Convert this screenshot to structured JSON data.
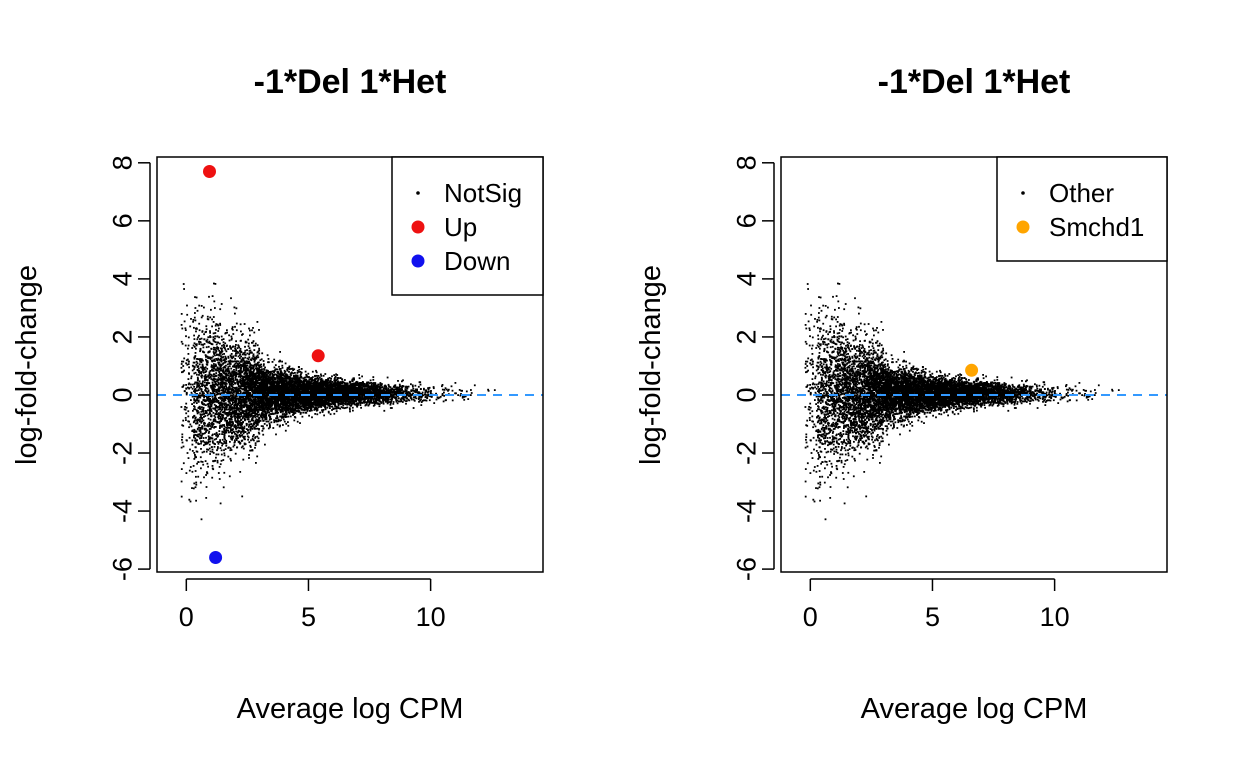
{
  "chart_data": [
    {
      "type": "scatter",
      "title": "-1*Del 1*Het",
      "xlabel": "Average log CPM",
      "ylabel": "log-fold-change",
      "xlim": [
        -1.2,
        14.6
      ],
      "ylim": [
        -6.1,
        8.2
      ],
      "xticks": [
        0,
        5,
        10
      ],
      "yticks": [
        -6,
        -4,
        -2,
        0,
        2,
        4,
        6,
        8
      ],
      "hline": {
        "y": 0,
        "color": "#3399ff",
        "style": "dashed"
      },
      "legend": {
        "position": "top-right",
        "entries": [
          {
            "label": "NotSig",
            "color": "#000000",
            "marker": "small-dot"
          },
          {
            "label": "Up",
            "color": "#ee1111",
            "marker": "dot"
          },
          {
            "label": "Down",
            "color": "#1111ee",
            "marker": "dot"
          }
        ]
      },
      "series": [
        {
          "name": "NotSig",
          "color": "#000000",
          "points": "dense cloud (~15000 genes) funneling from wide spread at low logCPM to narrow near logCPM 12-13"
        },
        {
          "name": "Up",
          "color": "#ee1111",
          "x": [
            0.95,
            5.4
          ],
          "y": [
            7.7,
            1.35
          ]
        },
        {
          "name": "Down",
          "color": "#1111ee",
          "x": [
            1.2
          ],
          "y": [
            -5.6
          ]
        }
      ]
    },
    {
      "type": "scatter",
      "title": "-1*Del 1*Het",
      "xlabel": "Average log CPM",
      "ylabel": "log-fold-change",
      "xlim": [
        -1.2,
        14.6
      ],
      "ylim": [
        -6.1,
        8.2
      ],
      "xticks": [
        0,
        5,
        10
      ],
      "yticks": [
        -6,
        -4,
        -2,
        0,
        2,
        4,
        6,
        8
      ],
      "hline": {
        "y": 0,
        "color": "#3399ff",
        "style": "dashed"
      },
      "legend": {
        "position": "top-right",
        "entries": [
          {
            "label": "Other",
            "color": "#000000",
            "marker": "small-dot"
          },
          {
            "label": "Smchd1",
            "color": "#ffa500",
            "marker": "dot"
          }
        ]
      },
      "series": [
        {
          "name": "Other",
          "color": "#000000",
          "points": "same gene cloud as left panel"
        },
        {
          "name": "Smchd1",
          "color": "#ffa500",
          "x": [
            6.6
          ],
          "y": [
            0.85
          ]
        }
      ]
    }
  ]
}
